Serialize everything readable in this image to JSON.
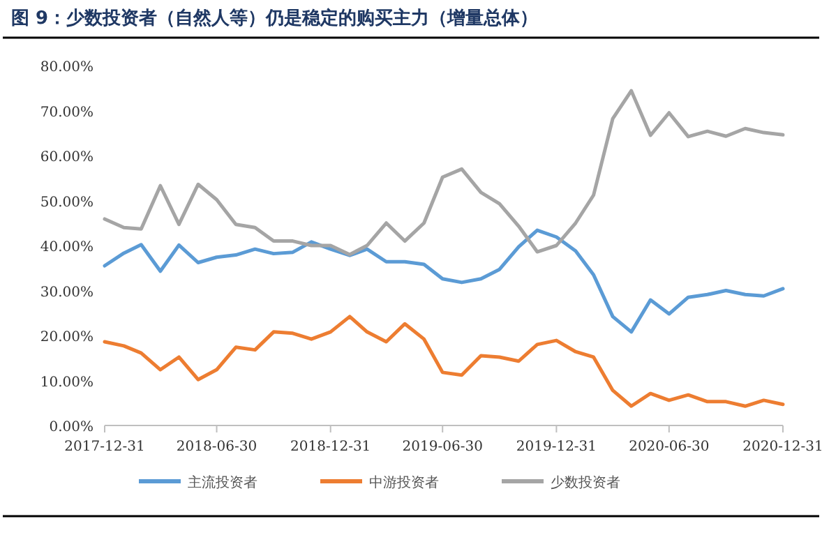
{
  "chart_data": {
    "type": "line",
    "title": "图 9：少数投资者（自然人等）仍是稳定的购买主力（增量总体）",
    "x": [
      "2017-12-31",
      "2018-01-31",
      "2018-02-28",
      "2018-03-31",
      "2018-04-30",
      "2018-05-31",
      "2018-06-30",
      "2018-07-31",
      "2018-08-31",
      "2018-09-30",
      "2018-10-31",
      "2018-11-30",
      "2018-12-31",
      "2019-01-31",
      "2019-02-28",
      "2019-03-31",
      "2019-04-30",
      "2019-05-31",
      "2019-06-30",
      "2019-07-31",
      "2019-08-31",
      "2019-09-30",
      "2019-10-31",
      "2019-11-30",
      "2019-12-31",
      "2020-01-31",
      "2020-02-29",
      "2020-03-31",
      "2020-04-30",
      "2020-05-31",
      "2020-06-30",
      "2020-07-31",
      "2020-08-31",
      "2020-09-30",
      "2020-10-31",
      "2020-11-30",
      "2020-12-31"
    ],
    "series": [
      {
        "name": "主流投资者",
        "color": "#5b9bd5",
        "values": [
          35.5,
          38.3,
          40.2,
          34.3,
          40.1,
          36.2,
          37.4,
          37.9,
          39.2,
          38.2,
          38.5,
          40.8,
          39.2,
          37.8,
          39.2,
          36.4,
          36.4,
          35.8,
          32.6,
          31.8,
          32.6,
          34.7,
          39.7,
          43.4,
          41.9,
          38.8,
          33.5,
          24.2,
          20.8,
          27.9,
          24.8,
          28.5,
          29.1,
          30.0,
          29.1,
          28.8,
          30.4
        ]
      },
      {
        "name": "中游投资者",
        "color": "#ed7d31",
        "values": [
          18.6,
          17.7,
          16.1,
          12.4,
          15.2,
          10.2,
          12.4,
          17.4,
          16.8,
          20.8,
          20.5,
          19.2,
          20.8,
          24.2,
          20.8,
          18.6,
          22.6,
          19.2,
          11.8,
          11.2,
          15.5,
          15.2,
          14.3,
          18.0,
          18.9,
          16.4,
          15.2,
          7.8,
          4.3,
          7.1,
          5.6,
          6.8,
          5.3,
          5.3,
          4.3,
          5.6,
          4.7
        ]
      },
      {
        "name": "少数投资者",
        "color": "#a5a5a5",
        "values": [
          45.9,
          44.0,
          43.7,
          53.3,
          44.7,
          53.6,
          50.2,
          44.7,
          44.0,
          41.0,
          41.0,
          40.0,
          40.0,
          38.0,
          40.0,
          45.0,
          41.0,
          45.0,
          55.2,
          57.0,
          51.8,
          49.3,
          44.3,
          38.6,
          40.0,
          45.0,
          51.2,
          68.2,
          74.4,
          64.5,
          69.5,
          64.2,
          65.4,
          64.3,
          66.0,
          65.1,
          64.6
        ]
      }
    ],
    "xlim": [
      "2017-12-31",
      "2020-12-31"
    ],
    "xticks": [
      {
        "value": "2017-12-31",
        "label": "2017-12-31"
      },
      {
        "value": "2018-06-30",
        "label": "2018-06-30"
      },
      {
        "value": "2018-12-31",
        "label": "2018-12-31"
      },
      {
        "value": "2019-06-30",
        "label": "2019-06-30"
      },
      {
        "value": "2019-12-31",
        "label": "2019-12-31"
      },
      {
        "value": "2020-06-30",
        "label": "2020-06-30"
      },
      {
        "value": "2020-12-31",
        "label": "2020-12-31"
      }
    ],
    "ylim": [
      0,
      80
    ],
    "yticks": [
      {
        "value": 0,
        "label": "0.00%"
      },
      {
        "value": 10,
        "label": "10.00%"
      },
      {
        "value": 20,
        "label": "20.00%"
      },
      {
        "value": 30,
        "label": "30.00%"
      },
      {
        "value": 40,
        "label": "40.00%"
      },
      {
        "value": 50,
        "label": "50.00%"
      },
      {
        "value": 60,
        "label": "60.00%"
      },
      {
        "value": 70,
        "label": "70.00%"
      },
      {
        "value": 80,
        "label": "80.00%"
      }
    ],
    "legend": "bottom"
  }
}
